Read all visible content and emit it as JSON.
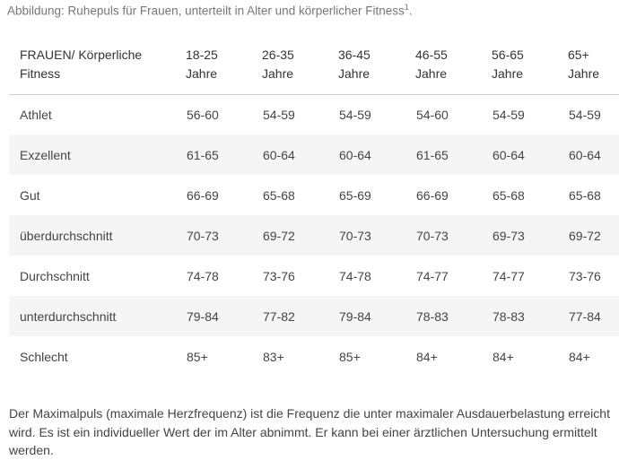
{
  "caption": {
    "text": "Abbildung: Ruhepuls für Frauen, unterteilt in Alter und körperlicher Fitness",
    "footnote": "1",
    "suffix": "."
  },
  "table": {
    "header": {
      "first": [
        "FRAUEN/ Körperliche",
        "Fitness"
      ],
      "ages": [
        [
          "18-25",
          "Jahre"
        ],
        [
          "26-35",
          "Jahre"
        ],
        [
          "36-45",
          "Jahre"
        ],
        [
          "46-55",
          "Jahre"
        ],
        [
          "56-65",
          "Jahre"
        ],
        [
          "65+",
          "Jahre"
        ]
      ]
    },
    "rows": [
      {
        "label": "Athlet",
        "values": [
          "56-60",
          "54-59",
          "54-59",
          "54-60",
          "54-59",
          "54-59"
        ]
      },
      {
        "label": "Exzellent",
        "values": [
          "61-65",
          "60-64",
          "60-64",
          "61-65",
          "60-64",
          "60-64"
        ]
      },
      {
        "label": "Gut",
        "values": [
          "66-69",
          "65-68",
          "65-69",
          "66-69",
          "65-68",
          "65-68"
        ]
      },
      {
        "label": "überdurchschnitt",
        "values": [
          "70-73",
          "69-72",
          "70-73",
          "70-73",
          "69-73",
          "69-72"
        ]
      },
      {
        "label": "Durchschnitt",
        "values": [
          "74-78",
          "73-76",
          "74-78",
          "74-77",
          "74-77",
          "73-76"
        ]
      },
      {
        "label": "unterdurchschnitt",
        "values": [
          "79-84",
          "77-82",
          "79-84",
          "78-83",
          "78-83",
          "77-84"
        ]
      },
      {
        "label": "Schlecht",
        "values": [
          "85+",
          "83+",
          "85+",
          "84+",
          "84+",
          "84+"
        ]
      }
    ]
  },
  "footer": {
    "text": "Der Maximalpuls (maximale Herzfrequenz) ist die Frequenz die unter maximaler Ausdauerbelastung erreicht wird. Es ist ein individueller Wert der im Alter abnimmt. Er kann bei einer ärztlichen Untersuchung ermittelt werden."
  }
}
